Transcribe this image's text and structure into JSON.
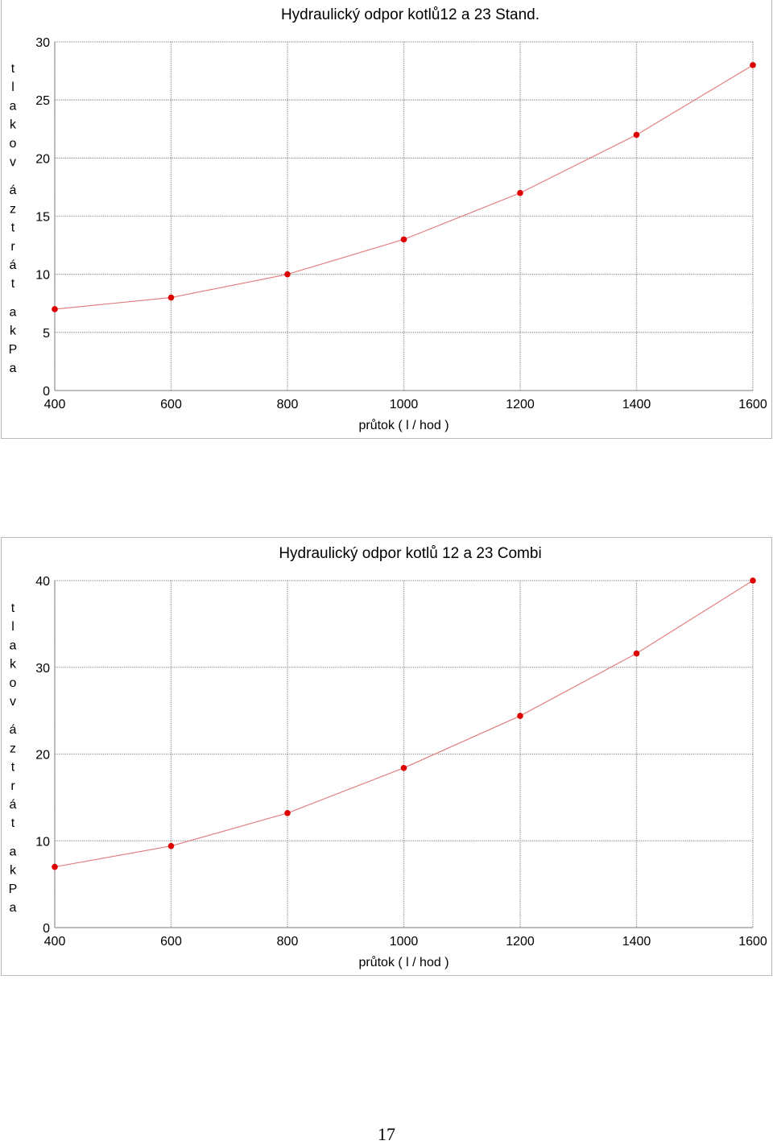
{
  "chart_data": [
    {
      "type": "line",
      "title": "Hydraulický odpor kotlů12 a 23 Stand.",
      "xlabel": "průtok ( l / hod )",
      "ylabel": "tlaková ztráta kPa",
      "x": [
        400,
        600,
        800,
        1000,
        1200,
        1400,
        1600
      ],
      "xticks": [
        "400",
        "600",
        "800",
        "1000",
        "1200",
        "1400",
        "1600"
      ],
      "yticks": [
        "0",
        "5",
        "10",
        "15",
        "20",
        "25",
        "30"
      ],
      "xlim": [
        400,
        1600
      ],
      "ylim": [
        0,
        30
      ],
      "grid": true,
      "series": [
        {
          "values": [
            7,
            8,
            10,
            13,
            17,
            22,
            28
          ]
        }
      ]
    },
    {
      "type": "line",
      "title": "Hydraulický odpor kotlů 12 a 23 Combi",
      "xlabel": "průtok ( l / hod )",
      "ylabel": "tlaková ztráta kPa",
      "x": [
        400,
        600,
        800,
        1000,
        1200,
        1400,
        1600
      ],
      "xticks": [
        "400",
        "600",
        "800",
        "1000",
        "1200",
        "1400",
        "1600"
      ],
      "yticks": [
        "0",
        "10",
        "20",
        "30",
        "40"
      ],
      "xlim": [
        400,
        1600
      ],
      "ylim": [
        0,
        40
      ],
      "grid": true,
      "series": [
        {
          "values": [
            7,
            9.4,
            13.2,
            18.4,
            24.4,
            31.6,
            40
          ]
        }
      ]
    }
  ],
  "colors": {
    "line": "#e08080",
    "marker": "#dd0000",
    "grid": "#999999",
    "axis": "#888888"
  },
  "page_number": "17"
}
